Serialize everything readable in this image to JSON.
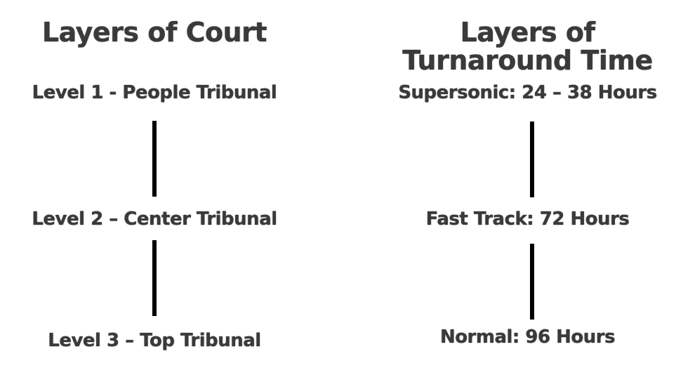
{
  "left": {
    "title": "Layers of Court",
    "levels": [
      "Level 1 - People Tribunal",
      "Level 2 – Center Tribunal",
      "Level 3 – Top Tribunal"
    ]
  },
  "right": {
    "title": "Layers of Turnaround Time",
    "levels": [
      "Supersonic:  24 – 38 Hours",
      "Fast Track: 72 Hours",
      "Normal: 96 Hours"
    ]
  },
  "colors": {
    "text": "#3a3a3a",
    "connector": "#000000",
    "background": "#ffffff"
  }
}
